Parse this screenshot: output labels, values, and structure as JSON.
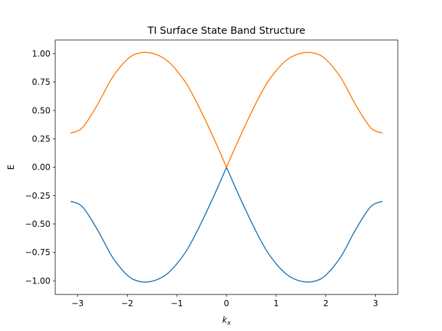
{
  "chart_data": {
    "type": "line",
    "title": "TI Surface State Band Structure",
    "xlabel_base": "k",
    "xlabel_sub": "x",
    "ylabel": "E",
    "xlim": [
      -3.45,
      3.45
    ],
    "ylim": [
      -1.12,
      1.12
    ],
    "xticks": [
      -3,
      -2,
      -1,
      0,
      1,
      2,
      3
    ],
    "xtick_labels": [
      "−3",
      "−2",
      "−1",
      "0",
      "1",
      "2",
      "3"
    ],
    "yticks": [
      -1.0,
      -0.75,
      -0.5,
      -0.25,
      0.0,
      0.25,
      0.5,
      0.75,
      1.0
    ],
    "ytick_labels": [
      "−1.00",
      "−0.75",
      "−0.50",
      "−0.25",
      "0.00",
      "0.25",
      "0.50",
      "0.75",
      "1.00"
    ],
    "grid": false,
    "series": [
      {
        "color": "#1f77b4",
        "x": [
          -3.14,
          -2.9,
          -2.6,
          -2.3,
          -2.0,
          -1.8,
          -1.6,
          -1.4,
          -1.2,
          -1.0,
          -0.8,
          -0.6,
          -0.4,
          -0.2,
          0.0,
          0.2,
          0.4,
          0.6,
          0.8,
          1.0,
          1.2,
          1.4,
          1.6,
          1.8,
          2.0,
          2.3,
          2.6,
          2.9,
          3.14
        ],
        "values": [
          -0.3,
          -0.35,
          -0.55,
          -0.79,
          -0.95,
          -1.0,
          -1.01,
          -0.99,
          -0.94,
          -0.85,
          -0.73,
          -0.57,
          -0.39,
          -0.2,
          0.0,
          -0.2,
          -0.39,
          -0.57,
          -0.73,
          -0.85,
          -0.94,
          -0.99,
          -1.01,
          -1.0,
          -0.95,
          -0.79,
          -0.55,
          -0.35,
          -0.3
        ]
      },
      {
        "color": "#ff7f0e",
        "x": [
          -3.14,
          -2.9,
          -2.6,
          -2.3,
          -2.0,
          -1.8,
          -1.6,
          -1.4,
          -1.2,
          -1.0,
          -0.8,
          -0.6,
          -0.4,
          -0.2,
          0.0,
          0.2,
          0.4,
          0.6,
          0.8,
          1.0,
          1.2,
          1.4,
          1.6,
          1.8,
          2.0,
          2.3,
          2.6,
          2.9,
          3.14
        ],
        "values": [
          0.3,
          0.35,
          0.55,
          0.79,
          0.95,
          1.0,
          1.01,
          0.99,
          0.94,
          0.85,
          0.73,
          0.57,
          0.39,
          0.2,
          0.0,
          0.2,
          0.39,
          0.57,
          0.73,
          0.85,
          0.94,
          0.99,
          1.01,
          1.0,
          0.95,
          0.79,
          0.55,
          0.35,
          0.3
        ]
      }
    ]
  }
}
